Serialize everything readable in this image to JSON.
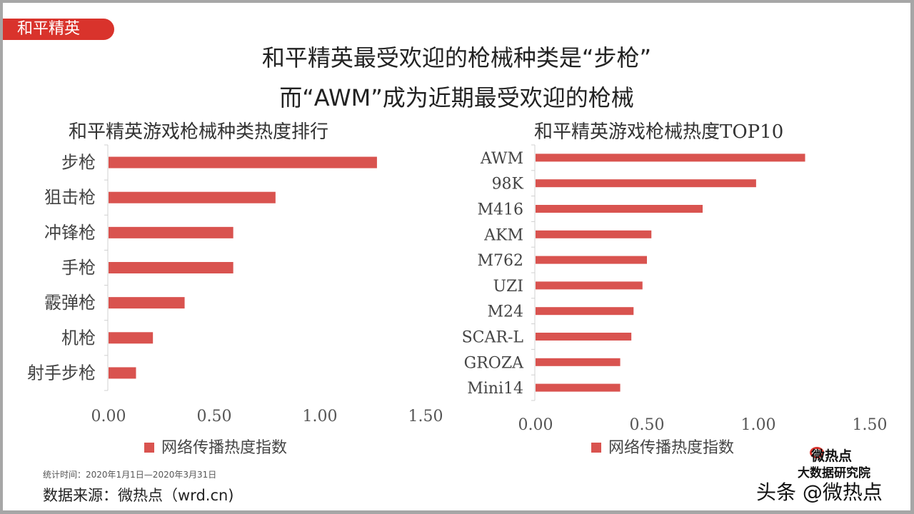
{
  "tag": "和平精英",
  "title_line1": "和平精英最受欢迎的枪械种类是“步枪”",
  "title_line2": "而“AWM”成为近期最受欢迎的枪械",
  "footer": {
    "period": "统计时间：2020年1月1日—2020年3月31日",
    "source": "数据来源：微热点（wrd.cn)"
  },
  "logo": {
    "brand": "微热点",
    "org": "大数据研究院",
    "watermark": "头条 @微热点"
  },
  "colors": {
    "bar": "#d9534f"
  },
  "chart_data": [
    {
      "type": "bar",
      "orientation": "horizontal",
      "title": "和平精英游戏枪械种类热度排行",
      "categories": [
        "步枪",
        "狙击枪",
        "冲锋枪",
        "手枪",
        "霰弹枪",
        "机枪",
        "射手步枪"
      ],
      "series": [
        {
          "name": "网络传播热度指数",
          "values": [
            1.27,
            0.79,
            0.59,
            0.59,
            0.36,
            0.21,
            0.13
          ]
        }
      ],
      "xlim": [
        0,
        1.5
      ],
      "xticks": [
        "0.00",
        "0.50",
        "1.00",
        "1.50"
      ],
      "grid": false,
      "legend": "bottom"
    },
    {
      "type": "bar",
      "orientation": "horizontal",
      "title": "和平精英游戏枪械热度TOP10",
      "categories": [
        "AWM",
        "98K",
        "M416",
        "AKM",
        "M762",
        "UZI",
        "M24",
        "SCAR-L",
        "GROZA",
        "Mini14"
      ],
      "series": [
        {
          "name": "网络传播热度指数",
          "values": [
            1.21,
            0.99,
            0.75,
            0.52,
            0.5,
            0.48,
            0.44,
            0.43,
            0.38,
            0.38
          ]
        }
      ],
      "xlim": [
        0,
        1.5
      ],
      "xticks": [
        "0.00",
        "0.50",
        "1.00",
        "1.50"
      ],
      "grid": false,
      "legend": "bottom"
    }
  ]
}
